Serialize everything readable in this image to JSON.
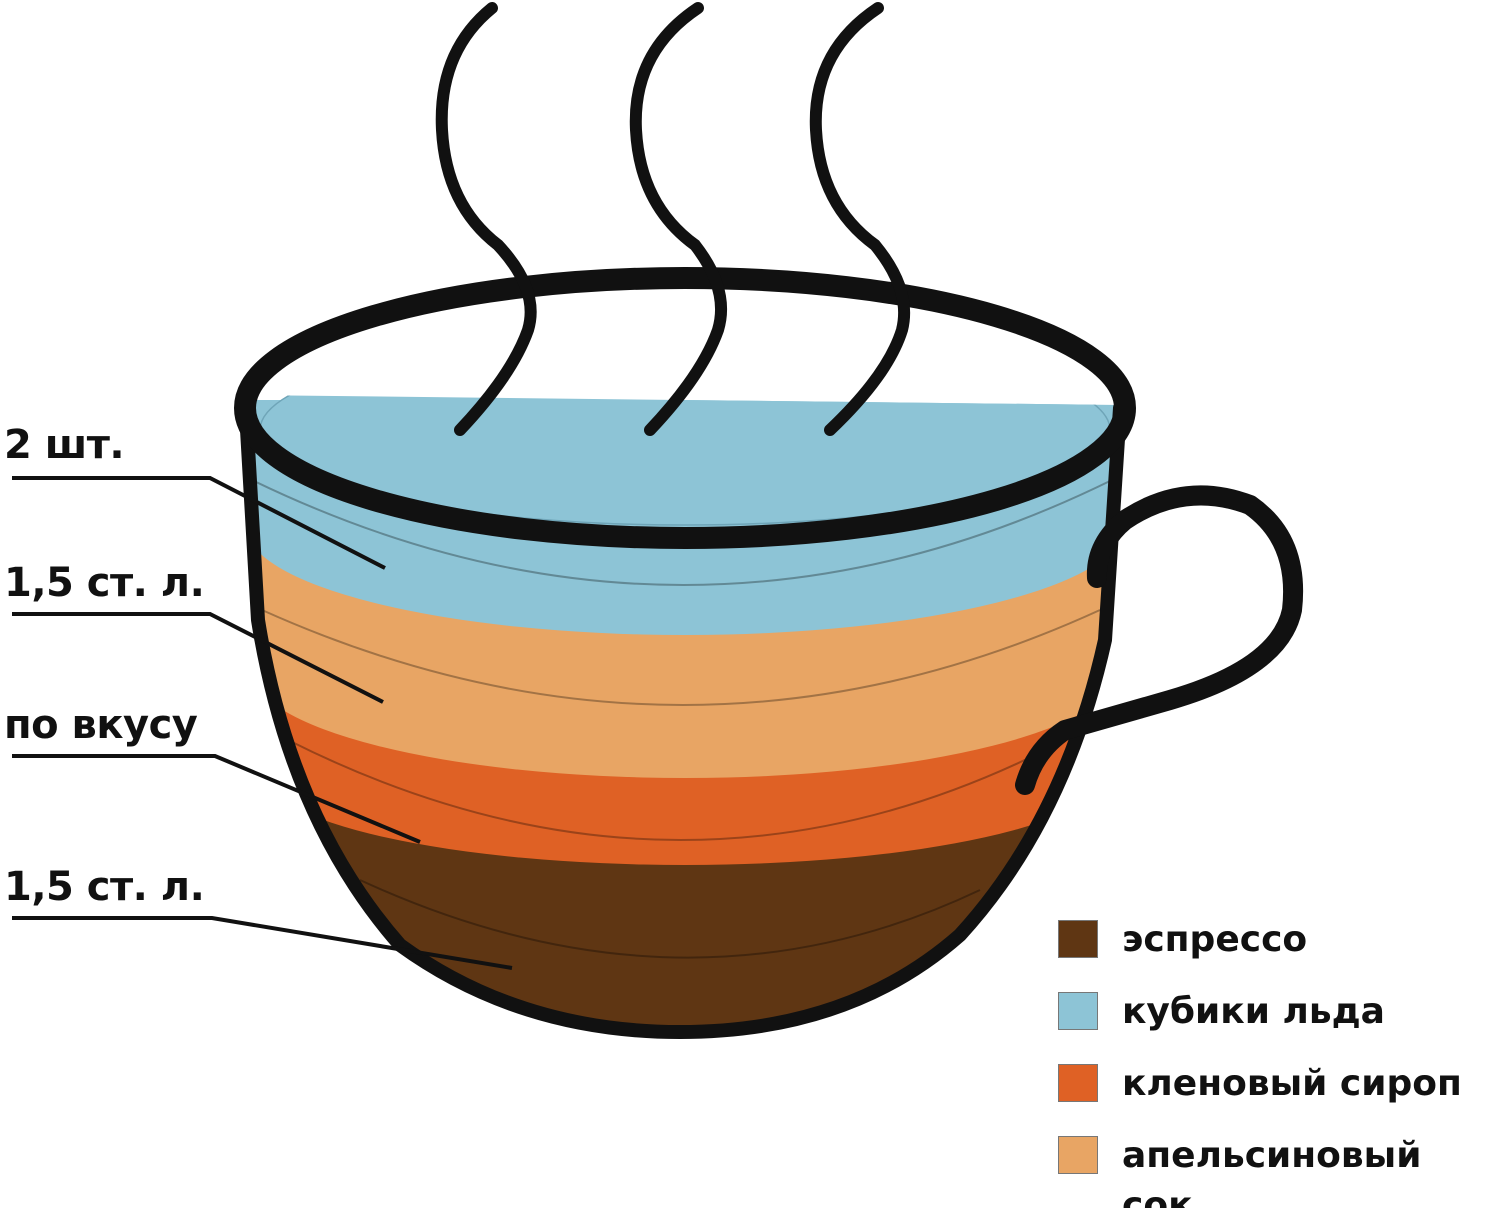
{
  "colors": {
    "espresso": "#5f3613",
    "ice": "#8dc4d6",
    "syrup": "#df6125",
    "juice": "#e8a564",
    "outline": "#111111"
  },
  "quantities": [
    "2 шт.",
    "1,5 ст. л.",
    "по вкусу",
    "1,5 ст. л."
  ],
  "legend": [
    {
      "label": "эспрессо",
      "color": "#5f3613"
    },
    {
      "label": "кубики льда",
      "color": "#8dc4d6"
    },
    {
      "label": "кленовый сироп",
      "color": "#df6125"
    },
    {
      "label": "апельсиновый сок",
      "color": "#e8a564"
    }
  ]
}
